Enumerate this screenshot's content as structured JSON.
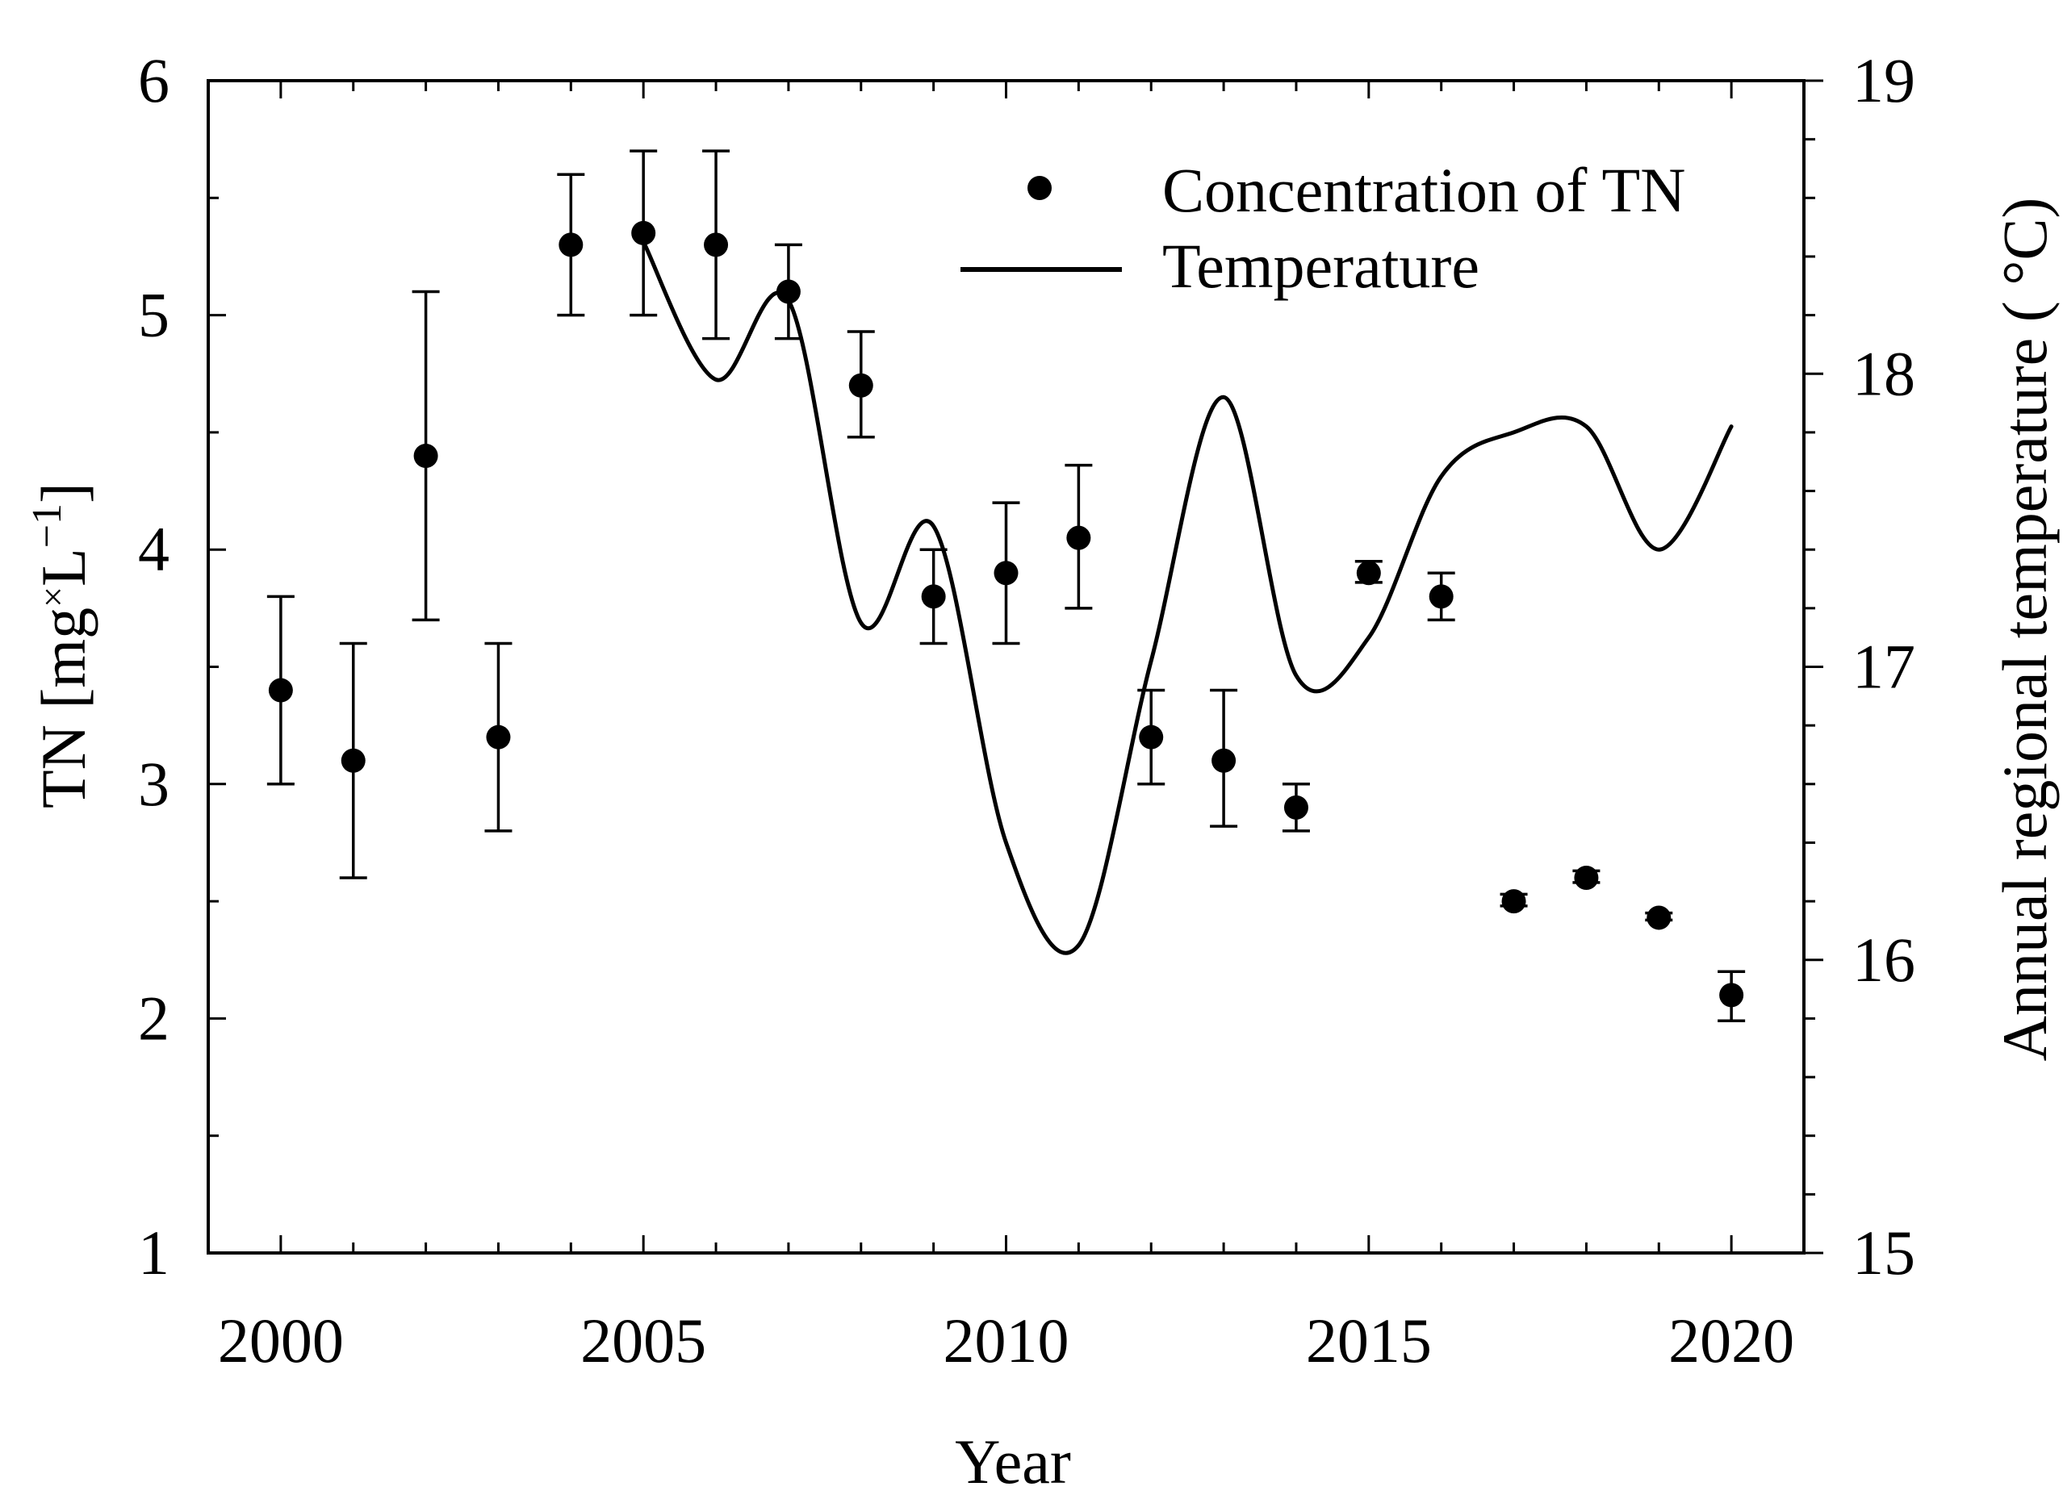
{
  "chart_data": {
    "type": "scatter",
    "title": "",
    "xlabel": "Year",
    "ylabel": "TN [mg·L⁻¹]",
    "ylabel_parts": {
      "main": "TN [mg",
      "dot": "×",
      "unit": "L",
      "sup": "−1",
      "close": "]"
    },
    "y2label": "Annual regional temperature ( °C)",
    "xlim": [
      1999,
      2021
    ],
    "ylim": [
      1,
      6
    ],
    "y2lim": [
      15,
      19
    ],
    "xticks": [
      2000,
      2005,
      2010,
      2015,
      2020
    ],
    "xtick_labels": [
      "2000",
      "2005",
      "2010",
      "2015",
      "2020"
    ],
    "yticks": [
      1,
      2,
      3,
      4,
      5,
      6
    ],
    "ytick_labels": [
      "1",
      "2",
      "3",
      "4",
      "5",
      "6"
    ],
    "y2ticks": [
      15,
      16,
      17,
      18,
      19
    ],
    "y2tick_labels": [
      "15",
      "16",
      "17",
      "18",
      "19"
    ],
    "legend": {
      "position": "top-right",
      "entries": [
        {
          "label": "Concentration of TN",
          "marker": "point"
        },
        {
          "label": "Temperature",
          "marker": "line"
        }
      ]
    },
    "series": [
      {
        "name": "Concentration of TN",
        "axis": "left",
        "kind": "points_with_error",
        "x": [
          2000,
          2001,
          2002,
          2003,
          2004,
          2005,
          2006,
          2007,
          2008,
          2009,
          2010,
          2011,
          2012,
          2013,
          2014,
          2015,
          2016,
          2017,
          2018,
          2019,
          2020
        ],
        "y": [
          3.4,
          3.1,
          4.4,
          3.2,
          5.3,
          5.35,
          5.3,
          5.1,
          4.7,
          3.8,
          3.9,
          4.05,
          3.2,
          3.1,
          2.9,
          3.9,
          3.8,
          2.5,
          2.6,
          2.43,
          2.1
        ],
        "err_low": [
          3.0,
          2.6,
          3.7,
          2.8,
          5.0,
          5.0,
          4.9,
          4.9,
          4.48,
          3.6,
          3.6,
          3.75,
          3.0,
          2.82,
          2.8,
          3.86,
          3.7,
          2.48,
          2.58,
          2.42,
          1.99
        ],
        "err_high": [
          3.8,
          3.6,
          5.1,
          3.6,
          5.6,
          5.7,
          5.7,
          5.3,
          4.93,
          4.0,
          4.2,
          4.36,
          3.4,
          3.4,
          3.0,
          3.95,
          3.9,
          2.53,
          2.63,
          2.45,
          2.2
        ]
      },
      {
        "name": "Temperature",
        "axis": "right",
        "kind": "line",
        "x": [
          2005,
          2006,
          2007,
          2008,
          2009,
          2010,
          2011,
          2012,
          2013,
          2014,
          2015,
          2016,
          2017,
          2018,
          2019,
          2020
        ],
        "y": [
          18.45,
          17.98,
          18.25,
          17.15,
          17.48,
          16.4,
          16.05,
          17.02,
          17.92,
          16.97,
          17.1,
          17.65,
          17.8,
          17.82,
          17.4,
          17.82
        ]
      }
    ]
  }
}
